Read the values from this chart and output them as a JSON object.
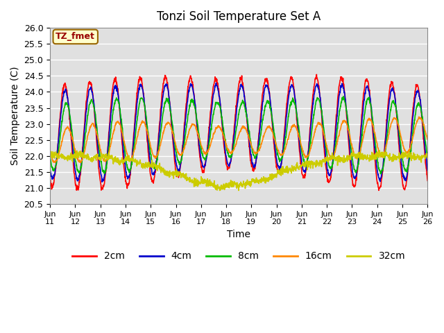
{
  "title": "Tonzi Soil Temperature Set A",
  "xlabel": "Time",
  "ylabel": "Soil Temperature (C)",
  "ylim": [
    20.5,
    26.0
  ],
  "yticks": [
    20.5,
    21.0,
    21.5,
    22.0,
    22.5,
    23.0,
    23.5,
    24.0,
    24.5,
    25.0,
    25.5,
    26.0
  ],
  "label_text": "TZ_fmet",
  "label_bg": "#ffffcc",
  "label_border": "#996600",
  "label_fg": "#990000",
  "bg_color": "#e0e0e0",
  "line_colors": {
    "2cm": "#ff0000",
    "4cm": "#0000cc",
    "8cm": "#00bb00",
    "16cm": "#ff8800",
    "32cm": "#cccc00"
  },
  "x_tick_days": [
    11,
    12,
    13,
    14,
    15,
    16,
    17,
    18,
    19,
    20,
    21,
    22,
    23,
    24,
    25,
    26
  ],
  "legend_entries": [
    "2cm",
    "4cm",
    "8cm",
    "16cm",
    "32cm"
  ],
  "grid_color": "#ffffff",
  "grid_linewidth": 1.0,
  "figsize": [
    6.4,
    4.8
  ],
  "dpi": 100
}
